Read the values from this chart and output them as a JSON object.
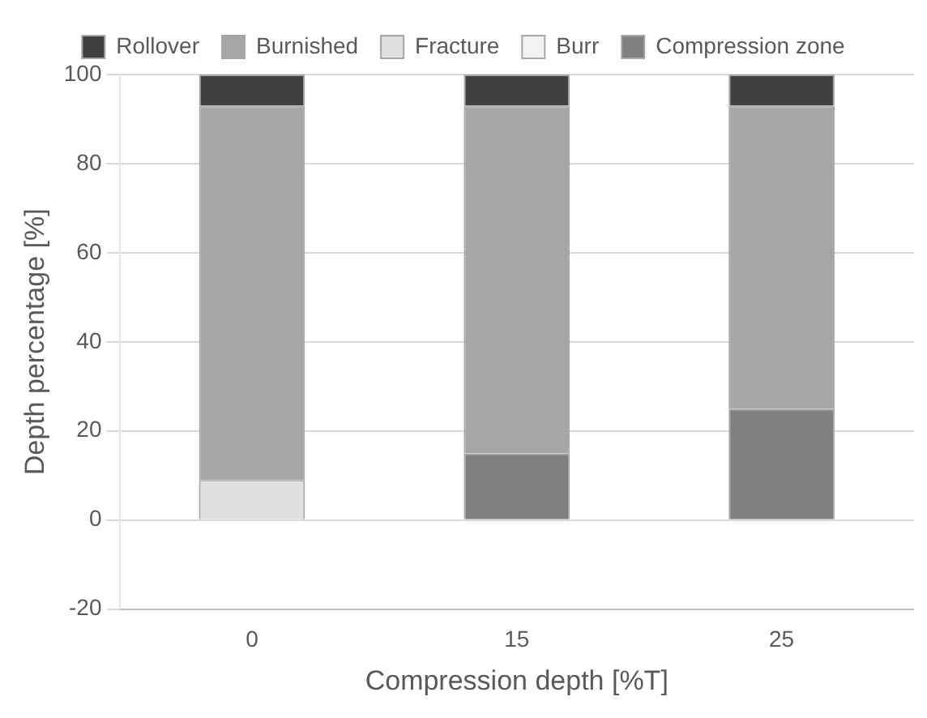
{
  "chart_data": {
    "type": "bar",
    "stacked": true,
    "xlabel": "Compression depth [%T]",
    "ylabel": "Depth percentage [%]",
    "categories": [
      "0",
      "15",
      "25"
    ],
    "series": [
      {
        "name": "Compression zone",
        "color": "#7f7f7f",
        "values": [
          0,
          15,
          25
        ]
      },
      {
        "name": "Burr",
        "color": "#f2f2f2",
        "values": [
          0,
          0,
          0
        ]
      },
      {
        "name": "Fracture",
        "color": "#e0e0e0",
        "values": [
          9,
          0,
          0
        ]
      },
      {
        "name": "Burnished",
        "color": "#a6a6a6",
        "values": [
          84,
          78,
          68
        ]
      },
      {
        "name": "Rollover",
        "color": "#404040",
        "values": [
          7,
          7,
          7
        ]
      }
    ],
    "ylim": [
      -20,
      100
    ],
    "yticks": [
      -20,
      0,
      20,
      40,
      60,
      80,
      100
    ],
    "grid": "y",
    "legend": "top"
  }
}
